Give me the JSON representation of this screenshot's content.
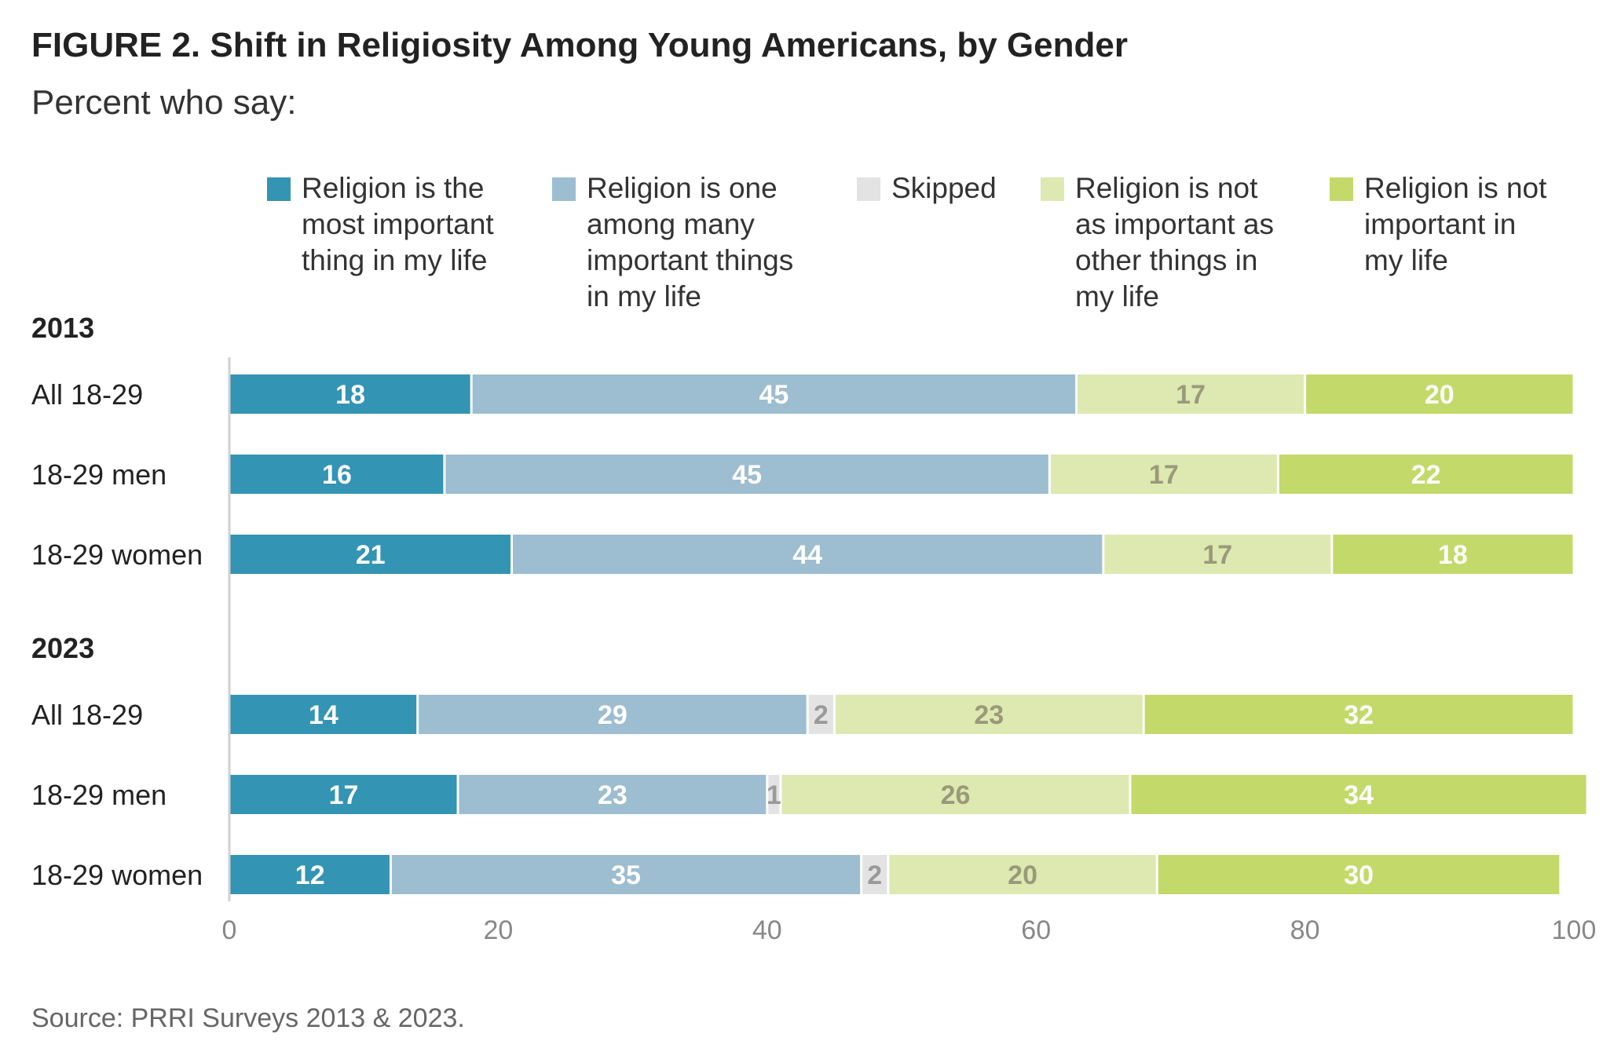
{
  "chart_data": {
    "type": "bar",
    "orientation": "horizontal",
    "stacked": true,
    "title": "FIGURE 2.  Shift in Religiosity Among Young Americans, by Gender",
    "subtitle": "Percent who say:",
    "source": "Source: PRRI Surveys 2013 & 2023.",
    "xlim": [
      0,
      100
    ],
    "xticks": [
      "0",
      "20",
      "40",
      "60",
      "80",
      "100"
    ],
    "grid": false,
    "legend_position": "top",
    "legend": [
      {
        "key": "most",
        "lines": [
          "Religion is the",
          "most important",
          "thing in my life"
        ],
        "color": "#3394b3",
        "label_color": "#ffffff"
      },
      {
        "key": "one_among",
        "lines": [
          "Religion is one",
          "among many",
          "important things",
          "in my life"
        ],
        "color": "#9dbdd0",
        "label_color": "#ffffff"
      },
      {
        "key": "skipped",
        "lines": [
          "Skipped"
        ],
        "color": "#e3e3e3",
        "label_color": "#9a9a9a"
      },
      {
        "key": "not_as",
        "lines": [
          "Religion is not",
          "as important as",
          "other things in",
          "my life"
        ],
        "color": "#dde9b1",
        "label_color": "#9a9a7a"
      },
      {
        "key": "not_important",
        "lines": [
          "Religion is not",
          "important in",
          "my life"
        ],
        "color": "#c3d96a",
        "label_color": "#ffffff"
      }
    ],
    "groups": [
      {
        "label": "2013",
        "rows": [
          {
            "label": "All 18-29",
            "values": [
              18,
              45,
              0,
              17,
              20
            ]
          },
          {
            "label": "18-29 men",
            "values": [
              16,
              45,
              0,
              17,
              22
            ]
          },
          {
            "label": "18-29 women",
            "values": [
              21,
              44,
              0,
              17,
              18
            ]
          }
        ]
      },
      {
        "label": "2023",
        "rows": [
          {
            "label": "All 18-29",
            "values": [
              14,
              29,
              2,
              23,
              32
            ]
          },
          {
            "label": "18-29 men",
            "values": [
              17,
              23,
              1,
              26,
              34
            ]
          },
          {
            "label": "18-29 women",
            "values": [
              12,
              35,
              2,
              20,
              30
            ]
          }
        ]
      }
    ]
  }
}
